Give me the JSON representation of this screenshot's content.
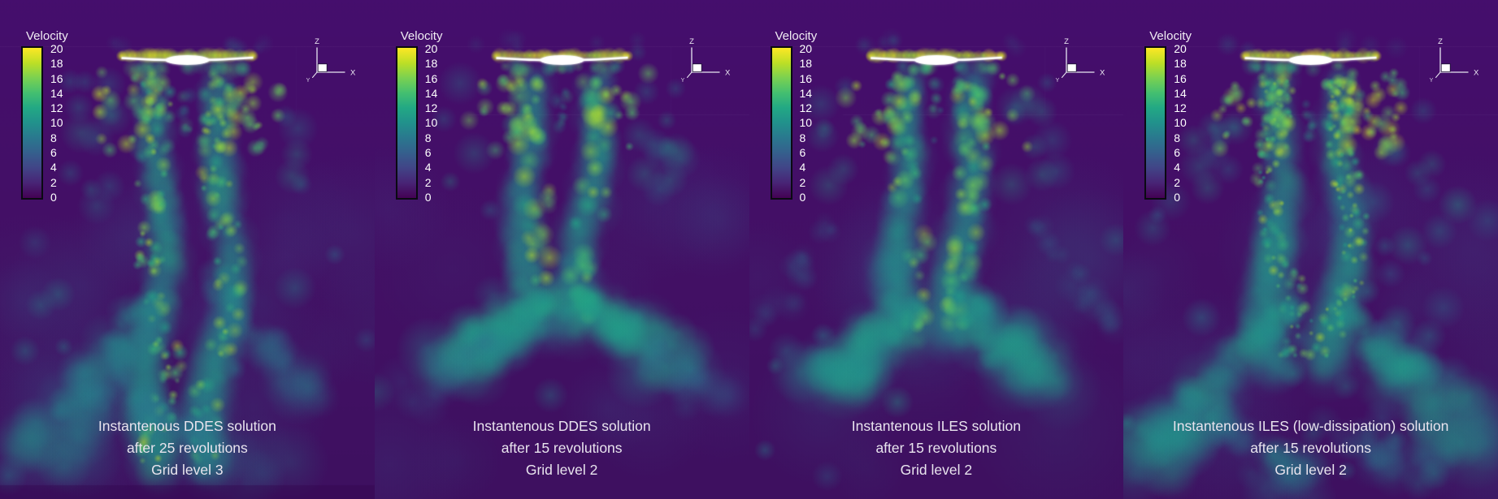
{
  "figure": {
    "type": "cfd-velocity-field-comparison",
    "background_color": "#440f6b",
    "text_color": "#e9e4ee",
    "colorbar": {
      "title": "Velocity",
      "ticks": [
        "20",
        "18",
        "16",
        "14",
        "12",
        "10",
        "8",
        "6",
        "4",
        "2",
        "0"
      ],
      "min": 0,
      "max": 20,
      "colormap": "viridis",
      "colors": [
        "#440154",
        "#482475",
        "#414487",
        "#355f8d",
        "#2a788e",
        "#21918c",
        "#22a884",
        "#44bf70",
        "#7ad151",
        "#bddf26",
        "#fde725"
      ],
      "border_color": "#0a0a12"
    },
    "axis_triad": {
      "z": "Z",
      "x": "X",
      "y": "Y"
    },
    "panels": [
      {
        "id": "ddes-25rev-grid3",
        "caption_lines": [
          "Instantenous DDES solution",
          "after 25 revolutions",
          "Grid level 3"
        ],
        "render": {
          "seed": 9,
          "detail": "fine",
          "wake_len": 585,
          "converge": 0.3,
          "wiggle": 16,
          "filaments": 175,
          "fil_r": [
            4,
            11
          ],
          "max_t": 0.93,
          "ambient": 20,
          "eddies": 16,
          "bottom_band": true,
          "arms": [
            [
              0.4,
              0.6,
              0.12,
              0.92,
              24,
              60,
              0.46,
              0.24,
              60
            ],
            [
              0.55,
              0.55,
              0.85,
              0.8,
              20,
              42,
              0.42,
              0.18,
              35
            ],
            [
              0.35,
              0.8,
              0.7,
              0.95,
              30,
              55,
              0.4,
              0.18,
              40
            ]
          ]
        }
      },
      {
        "id": "ddes-15rev-grid2",
        "caption_lines": [
          "Instantenous DDES solution",
          "after 15 revolutions",
          "Grid level 2"
        ],
        "render": {
          "seed": 7,
          "detail": "smooth",
          "wake_len": 410,
          "converge": 1,
          "wiggle": 10,
          "filaments": 70,
          "fil_r": [
            8,
            16
          ],
          "max_t": 0.88,
          "ambient": 12,
          "eddies": 6,
          "bottom_band": false,
          "arms": [
            [
              0.46,
              0.6,
              0.2,
              0.73,
              24,
              55,
              0.52,
              0.32,
              55
            ],
            [
              0.54,
              0.6,
              0.8,
              0.72,
              24,
              55,
              0.52,
              0.32,
              55
            ],
            [
              0.3,
              0.68,
              0.1,
              0.8,
              26,
              40,
              0.34,
              0.16,
              25
            ],
            [
              0.7,
              0.68,
              0.9,
              0.8,
              26,
              40,
              0.34,
              0.16,
              25
            ]
          ]
        }
      },
      {
        "id": "iles-15rev-grid2",
        "caption_lines": [
          "Instantenous ILES solution",
          "after 15 revolutions",
          "Grid level 2"
        ],
        "render": {
          "seed": 11,
          "detail": "medium",
          "wake_len": 425,
          "converge": 0.9,
          "wiggle": 12,
          "filaments": 95,
          "fil_r": [
            7,
            14
          ],
          "max_t": 0.9,
          "ambient": 14,
          "eddies": 12,
          "bottom_band": false,
          "arms": [
            [
              0.45,
              0.6,
              0.18,
              0.78,
              24,
              58,
              0.5,
              0.3,
              55
            ],
            [
              0.55,
              0.6,
              0.82,
              0.78,
              24,
              58,
              0.5,
              0.3,
              55
            ],
            [
              0.78,
              0.45,
              0.97,
              0.66,
              16,
              30,
              0.38,
              0.18,
              20
            ],
            [
              0.22,
              0.45,
              0.04,
              0.64,
              16,
              28,
              0.36,
              0.16,
              18
            ]
          ]
        }
      },
      {
        "id": "iles-lowdissipation-15rev-grid2",
        "caption_lines": [
          "Instantenous ILES (low-dissipation) solution",
          "after 15 revolutions",
          "Grid level 2"
        ],
        "render": {
          "seed": 5,
          "detail": "very-fine",
          "wake_len": 455,
          "converge": 0.4,
          "wiggle": 20,
          "filaments": 250,
          "fil_r": [
            3,
            9
          ],
          "max_t": 0.95,
          "ambient": 18,
          "eddies": 42,
          "bottom_band": false,
          "arms": [
            [
              0.43,
              0.62,
              0.06,
              0.92,
              22,
              64,
              0.5,
              0.26,
              65
            ],
            [
              0.57,
              0.62,
              0.93,
              0.88,
              22,
              64,
              0.5,
              0.26,
              65
            ],
            [
              0.2,
              0.8,
              0.45,
              0.97,
              26,
              46,
              0.42,
              0.2,
              30
            ],
            [
              0.55,
              0.85,
              0.85,
              0.97,
              26,
              46,
              0.4,
              0.18,
              25
            ]
          ]
        }
      }
    ]
  },
  "chart_data": {
    "type": "heatmap",
    "title": "",
    "field": "Velocity",
    "value_range": [
      0,
      20
    ],
    "colormap": "viridis",
    "colorbar_ticks": [
      20,
      18,
      16,
      14,
      12,
      10,
      8,
      6,
      4,
      2,
      0
    ],
    "axes": {
      "horizontal": "X",
      "vertical": "Z",
      "out_of_plane": "Y"
    },
    "legend_position": "top-left of each panel",
    "panels": [
      {
        "caption": "Instantenous DDES solution after 25 revolutions, Grid level 3",
        "method": "DDES",
        "revolutions": 25,
        "grid_level": 3
      },
      {
        "caption": "Instantenous DDES solution after 15 revolutions, Grid level 2",
        "method": "DDES",
        "revolutions": 15,
        "grid_level": 2
      },
      {
        "caption": "Instantenous ILES solution after 15 revolutions, Grid level 2",
        "method": "ILES",
        "revolutions": 15,
        "grid_level": 2
      },
      {
        "caption": "Instantenous ILES (low-dissipation) solution after 15 revolutions, Grid level 2",
        "method": "ILES (low-dissipation)",
        "revolutions": 15,
        "grid_level": 2
      }
    ]
  }
}
